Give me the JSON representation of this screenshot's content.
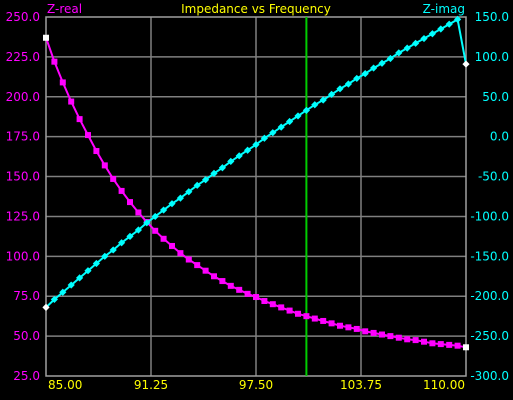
{
  "chart_data": {
    "type": "line",
    "title": "Impedance vs Frequency",
    "left_axis_label": "Z-real",
    "right_axis_label": "Z-imag",
    "x_ticks": [
      "85.00",
      "91.25",
      "97.50",
      "103.75",
      "110.00"
    ],
    "xlim": [
      85.0,
      110.0
    ],
    "ylim_left": [
      25.0,
      250.0
    ],
    "ylim_right": [
      -300.0,
      150.0
    ],
    "y_ticks_left": [
      "25.0",
      "50.0",
      "75.0",
      "100.0",
      "125.0",
      "150.0",
      "175.0",
      "200.0",
      "225.0",
      "250.0"
    ],
    "y_ticks_right": [
      "-300.0",
      "-250.0",
      "-200.0",
      "-150.0",
      "-100.0",
      "-50.0",
      "0.0",
      "50.0",
      "100.0",
      "150.0"
    ],
    "grid": true,
    "marker_line_x": 100.5,
    "series": [
      {
        "name": "Z-real",
        "axis": "left",
        "color": "#ff00ff",
        "marker": "square",
        "x": [
          85.0,
          85.5,
          86.0,
          86.5,
          87.0,
          87.5,
          88.0,
          88.5,
          89.0,
          89.5,
          90.0,
          90.5,
          91.0,
          91.5,
          92.0,
          92.5,
          93.0,
          93.5,
          94.0,
          94.5,
          95.0,
          95.5,
          96.0,
          96.5,
          97.0,
          97.5,
          98.0,
          98.5,
          99.0,
          99.5,
          100.0,
          100.5,
          101.0,
          101.5,
          102.0,
          102.5,
          103.0,
          103.5,
          104.0,
          104.5,
          105.0,
          105.5,
          106.0,
          106.5,
          107.0,
          107.5,
          108.0,
          108.5,
          109.0,
          109.5,
          110.0
        ],
        "values": [
          237.0,
          222.0,
          209.0,
          197.0,
          186.0,
          176.0,
          166.0,
          157.0,
          148.5,
          141.0,
          134.0,
          127.5,
          121.5,
          116.0,
          111.0,
          106.5,
          102.0,
          98.0,
          94.5,
          91.0,
          87.5,
          84.5,
          81.5,
          79.0,
          76.5,
          74.5,
          72.0,
          70.0,
          68.0,
          66.0,
          64.0,
          62.5,
          61.0,
          59.5,
          58.0,
          56.5,
          55.5,
          54.5,
          53.0,
          52.0,
          51.0,
          50.0,
          49.0,
          48.0,
          47.5,
          46.5,
          45.5,
          45.0,
          44.5,
          44.0,
          43.0
        ]
      },
      {
        "name": "Z-imag",
        "axis": "right",
        "color": "#00ffff",
        "marker": "diamond",
        "x": [
          85.0,
          85.5,
          86.0,
          86.5,
          87.0,
          87.5,
          88.0,
          88.5,
          89.0,
          89.5,
          90.0,
          90.5,
          91.0,
          91.5,
          92.0,
          92.5,
          93.0,
          93.5,
          94.0,
          94.5,
          95.0,
          95.5,
          96.0,
          96.5,
          97.0,
          97.5,
          98.0,
          98.5,
          99.0,
          99.5,
          100.0,
          100.5,
          101.0,
          101.5,
          102.0,
          102.5,
          103.0,
          103.5,
          104.0,
          104.5,
          105.0,
          105.5,
          106.0,
          106.5,
          107.0,
          107.5,
          108.0,
          108.5,
          109.0,
          109.5,
          110.0
        ],
        "values": [
          -214.0,
          -204.0,
          -195.0,
          -186.0,
          -177.0,
          -168.0,
          -159.0,
          -150.0,
          -142.0,
          -133.0,
          -125.0,
          -117.0,
          -108.0,
          -100.0,
          -92.0,
          -84.0,
          -77.0,
          -69.0,
          -61.0,
          -54.0,
          -46.0,
          -39.0,
          -31.0,
          -24.0,
          -17.0,
          -10.0,
          -2.0,
          5.0,
          12.0,
          19.0,
          26.0,
          33.0,
          40.0,
          46.0,
          53.0,
          60.0,
          66.0,
          73.0,
          79.0,
          86.0,
          92.0,
          98.0,
          105.0,
          111.0,
          117.0,
          123.0,
          129.0,
          135.0,
          141.0,
          147.0,
          91.0
        ]
      }
    ]
  },
  "colors": {
    "background": "#000000",
    "grid": "#808080",
    "frame": "#a0a0a0",
    "title": "#ffff00",
    "x_tick_text": "#ffff00",
    "left_axis_text": "#ff00ff",
    "right_axis_text": "#00ffff",
    "marker_line": "#00cc00",
    "endpoint_marker": "#ffffff"
  }
}
